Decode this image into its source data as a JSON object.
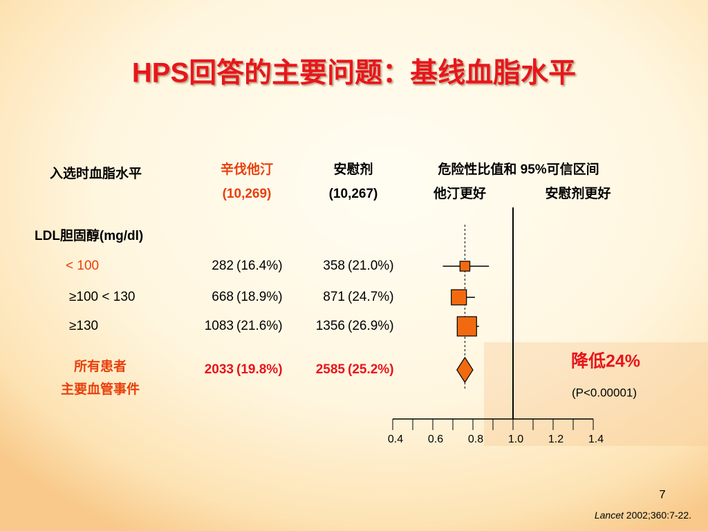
{
  "chart_data": {
    "type": "forest",
    "title": "HPS回答的主要问题：基线血脂水平",
    "headers": {
      "group": "入选时血脂水平",
      "statin": "辛伐他汀",
      "statin_n": "(10,269)",
      "placebo": "安慰剂",
      "placebo_n": "(10,267)",
      "ratio": "危险性比值和 95%可信区间",
      "left_favors": "他汀更好",
      "right_favors": "安慰剂更好"
    },
    "section": "LDL胆固醇(mg/dl)",
    "rows": [
      {
        "label": "< 100",
        "label_color": "#e8400c",
        "statin_events": 282,
        "statin_pct": "(16.4%)",
        "placebo_events": 358,
        "placebo_pct": "(21.0%)",
        "hr": 0.76,
        "lo": 0.65,
        "hi": 0.88
      },
      {
        "label": "≥100 < 130",
        "statin_events": 668,
        "statin_pct": "(18.9%)",
        "placebo_events": 871,
        "placebo_pct": "(24.7%)",
        "hr": 0.73,
        "lo": 0.7,
        "hi": 0.81
      },
      {
        "label": "≥130",
        "statin_events": 1083,
        "statin_pct": "(21.6%)",
        "placebo_events": 1356,
        "placebo_pct": "(26.9%)",
        "hr": 0.77,
        "lo": 0.72,
        "hi": 0.83
      },
      {
        "label": "所有患者",
        "sublabel": "主要血管事件",
        "label_color": "#e8400c",
        "summary": true,
        "statin_events": 2033,
        "statin_pct": "(19.8%)",
        "placebo_events": 2585,
        "placebo_pct": "(25.2%)",
        "hr": 0.76,
        "lo": 0.72,
        "hi": 0.8
      }
    ],
    "marker_color": "#f26a10",
    "reference": 1,
    "xlim": [
      0.4,
      1.4
    ],
    "xticks": [
      0.4,
      0.6,
      0.8,
      {
        "value": 1,
        "label": "1.0"
      },
      1.2,
      1.4
    ],
    "annotation": "降低24%",
    "p_value": "(P<0.00001)"
  },
  "footer": {
    "page": "7",
    "journal": "Lancet",
    "citation": " 2002;360:7-22."
  }
}
